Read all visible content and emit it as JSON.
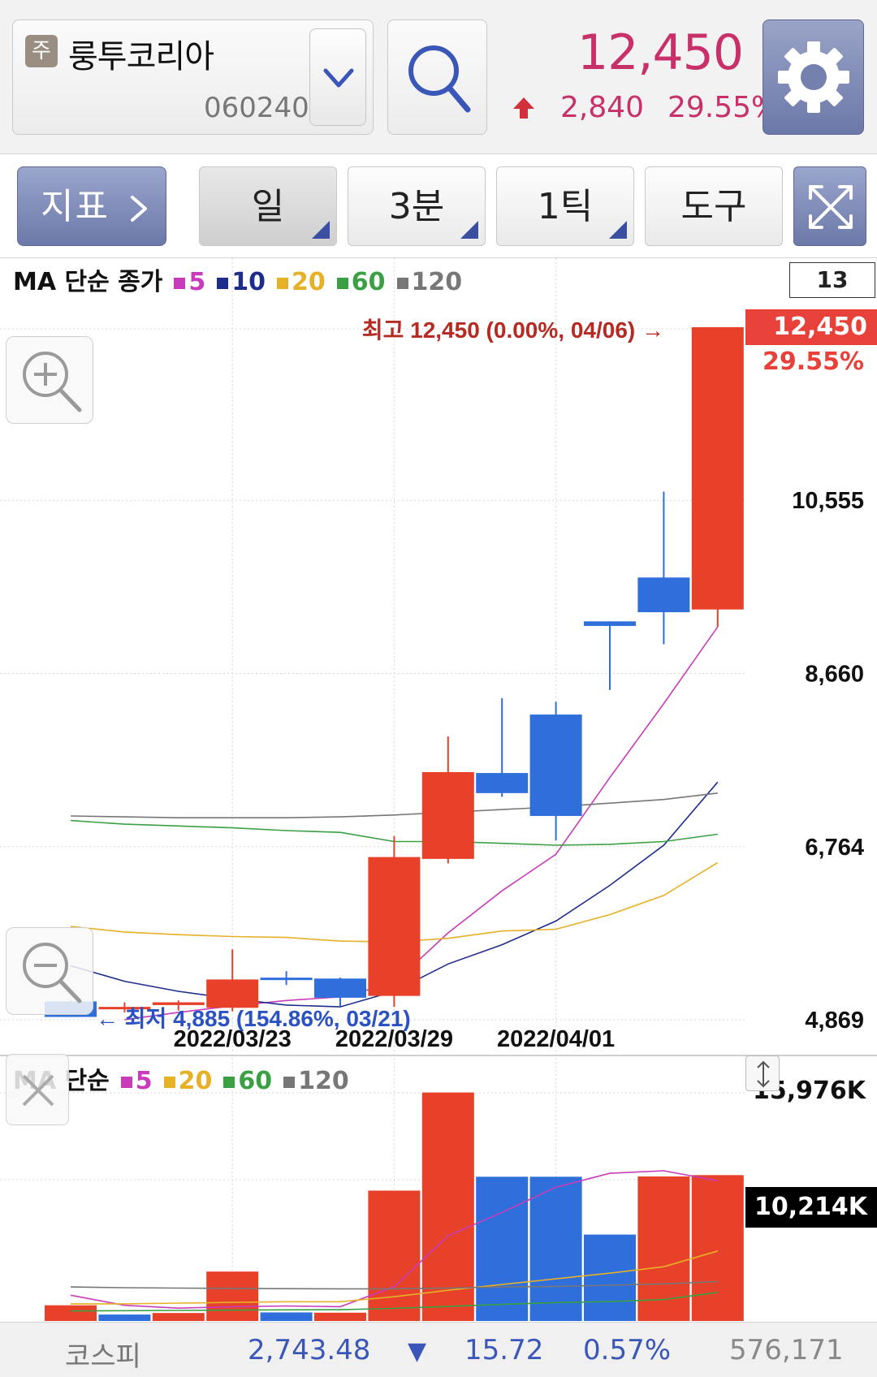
{
  "stock": {
    "badge": "주",
    "name": "룽투코리아",
    "code": "060240",
    "price": "12,450",
    "change": "2,840",
    "change_rate": "29.55%"
  },
  "toolbar": {
    "indicator_label": "지표",
    "period_label": "일",
    "minute_label": "3분",
    "tick_label": "1틱",
    "tools_label": "도구"
  },
  "colors": {
    "up": "#e8412a",
    "down": "#2f6fdc",
    "ma5": "#c83cbc",
    "ma10": "#1e2d8c",
    "ma20": "#e6b027",
    "ma60": "#3ba043",
    "ma120": "#777777",
    "accent": "#6c78a8"
  },
  "icons": [
    "dropdown-chevron-icon",
    "search-icon",
    "gear-icon",
    "chevron-right-icon",
    "expand-icon",
    "zoom-in-icon",
    "zoom-out-icon",
    "close-icon",
    "resize-icon",
    "up-arrow-icon",
    "down-arrow-icon"
  ],
  "price_legend": {
    "title": "MA 단순 종가",
    "items": [
      {
        "label": "5",
        "color": "#c83cbc"
      },
      {
        "label": "10",
        "color": "#1e2d8c"
      },
      {
        "label": "20",
        "color": "#e6b027"
      },
      {
        "label": "60",
        "color": "#3ba043"
      },
      {
        "label": "120",
        "color": "#777777"
      }
    ]
  },
  "volume_legend": {
    "title": "MA 단순",
    "items": [
      {
        "label": "5",
        "color": "#c83cbc"
      },
      {
        "label": "20",
        "color": "#e6b027"
      },
      {
        "label": "60",
        "color": "#3ba043"
      },
      {
        "label": "120",
        "color": "#777777"
      }
    ]
  },
  "chart_labels": {
    "count": "13",
    "price_tag": "12,450",
    "price_tag_rate": "29.55%",
    "high_annotation": "최고 12,450 (0.00%, 04/06) →",
    "low_annotation": "← 최저 4,885 (154.86%, 03/21)",
    "volume_tag": "10,214K",
    "volume_max": "15,976K"
  },
  "chart_data": [
    {
      "type": "candlestick",
      "title": "",
      "ylim": [
        4869,
        12450
      ],
      "y_ticks": [
        "10,555",
        "8,660",
        "6,764",
        "4,869"
      ],
      "y_tick_values": [
        10555,
        8660,
        6764,
        4869
      ],
      "x_tick_labels": [
        "2022/03/23",
        "2022/03/29",
        "2022/04/01"
      ],
      "x_tick_indices": [
        3,
        6,
        9
      ],
      "grid": true,
      "candles": [
        {
          "open": 5070,
          "high": 5080,
          "low": 4900,
          "close": 4900
        },
        {
          "open": 5000,
          "high": 5060,
          "low": 4950,
          "close": 5010
        },
        {
          "open": 5030,
          "high": 5080,
          "low": 4970,
          "close": 5060
        },
        {
          "open": 5000,
          "high": 5640,
          "low": 4960,
          "close": 5310
        },
        {
          "open": 5330,
          "high": 5400,
          "low": 5250,
          "close": 5310
        },
        {
          "open": 5320,
          "high": 5330,
          "low": 5020,
          "close": 5110
        },
        {
          "open": 5130,
          "high": 6880,
          "low": 5010,
          "close": 6650
        },
        {
          "open": 6630,
          "high": 7970,
          "low": 6580,
          "close": 7580
        },
        {
          "open": 7570,
          "high": 8390,
          "low": 7310,
          "close": 7350
        },
        {
          "open": 8210,
          "high": 8350,
          "low": 6830,
          "close": 7100
        },
        {
          "open": 9230,
          "high": 9230,
          "low": 8480,
          "close": 9180
        },
        {
          "open": 9710,
          "high": 10650,
          "low": 8980,
          "close": 9330
        },
        {
          "open": 9360,
          "high": 12450,
          "low": 9170,
          "close": 12450
        }
      ],
      "series": [
        {
          "name": "5",
          "values": [
            null,
            4870,
            4950,
            5020,
            5080,
            5120,
            5270,
            5820,
            6280,
            6680,
            7520,
            8330,
            9170
          ]
        },
        {
          "name": "10",
          "values": [
            5460,
            5290,
            5180,
            5100,
            5030,
            5010,
            5180,
            5480,
            5690,
            5950,
            6340,
            6780,
            7470
          ]
        },
        {
          "name": "20",
          "values": [
            5890,
            5830,
            5800,
            5780,
            5770,
            5730,
            5720,
            5760,
            5840,
            5860,
            6020,
            6230,
            6590
          ]
        },
        {
          "name": "60",
          "values": [
            7050,
            7010,
            6990,
            6970,
            6940,
            6920,
            6820,
            6820,
            6800,
            6780,
            6790,
            6820,
            6900
          ]
        },
        {
          "name": "120",
          "values": [
            7100,
            7090,
            7080,
            7080,
            7080,
            7090,
            7110,
            7140,
            7170,
            7200,
            7240,
            7280,
            7350
          ]
        }
      ],
      "high_point": {
        "value": 12450,
        "rate": "0.00%",
        "date": "04/06"
      },
      "low_point": {
        "value": 4885,
        "rate": "154.86%",
        "date": "03/21"
      }
    },
    {
      "type": "bar",
      "title": "",
      "ylim": [
        0,
        15976
      ],
      "unit": "K",
      "values": [
        1100,
        450,
        560,
        3460,
        600,
        580,
        9130,
        16000,
        10100,
        10100,
        6050,
        10120,
        10214
      ],
      "colors": [
        "up",
        "down",
        "up",
        "up",
        "down",
        "up",
        "up",
        "up",
        "down",
        "down",
        "down",
        "up",
        "up"
      ],
      "series": [
        {
          "name": "5",
          "values": [
            1800,
            1100,
            900,
            1000,
            1050,
            1000,
            2400,
            5960,
            7600,
            9370,
            10340,
            10520,
            9820
          ]
        },
        {
          "name": "20",
          "values": [
            1200,
            1200,
            1250,
            1300,
            1350,
            1350,
            1700,
            2150,
            2550,
            2950,
            3350,
            3800,
            4900
          ]
        },
        {
          "name": "60",
          "values": [
            700,
            720,
            740,
            760,
            780,
            790,
            880,
            1020,
            1160,
            1290,
            1360,
            1500,
            2000
          ]
        },
        {
          "name": "120",
          "values": [
            2380,
            2330,
            2300,
            2280,
            2260,
            2250,
            2250,
            2300,
            2380,
            2420,
            2500,
            2600,
            2760
          ]
        }
      ]
    }
  ],
  "footer": {
    "index_name": "코스피",
    "index_value": "2,743.48",
    "index_arrow": "▼",
    "index_change": "15.72",
    "index_rate": "0.57%",
    "index_volume": "576,171"
  }
}
